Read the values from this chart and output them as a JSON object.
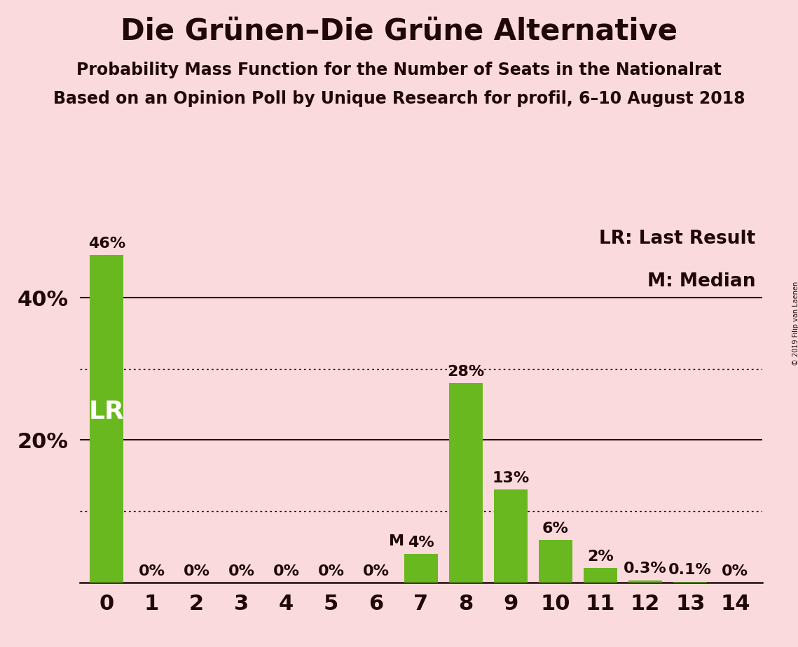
{
  "title": "Die Grünen–Die Grüne Alternative",
  "subtitle1": "Probability Mass Function for the Number of Seats in the Nationalrat",
  "subtitle2": "Based on an Opinion Poll by Unique Research for profil, 6–10 August 2018",
  "copyright": "© 2019 Filip van Laenen",
  "categories": [
    0,
    1,
    2,
    3,
    4,
    5,
    6,
    7,
    8,
    9,
    10,
    11,
    12,
    13,
    14
  ],
  "values": [
    0.46,
    0.0,
    0.0,
    0.0,
    0.0,
    0.0,
    0.0,
    0.04,
    0.28,
    0.13,
    0.06,
    0.02,
    0.003,
    0.001,
    0.0
  ],
  "value_labels": [
    "46%",
    "0%",
    "0%",
    "0%",
    "0%",
    "0%",
    "0%",
    "4%",
    "28%",
    "13%",
    "6%",
    "2%",
    "0.3%",
    "0.1%",
    "0%"
  ],
  "bar_color": "#6ab820",
  "background_color": "#fadadd",
  "text_color": "#200808",
  "lr_seat": 0,
  "lr_label": "LR",
  "median_seat": 7,
  "median_label": "M",
  "ylim": [
    0,
    0.5
  ],
  "solid_grid": [
    0.2,
    0.4
  ],
  "dotted_grid": [
    0.1,
    0.3
  ],
  "ytick_positions": [
    0.2,
    0.4
  ],
  "ytick_labels": [
    "20%",
    "40%"
  ],
  "legend_lr": "LR: Last Result",
  "legend_m": "M: Median",
  "title_fontsize": 30,
  "subtitle_fontsize": 17,
  "axis_fontsize": 22,
  "bar_label_fontsize": 16,
  "lr_label_fontsize": 26,
  "legend_fontsize": 19
}
